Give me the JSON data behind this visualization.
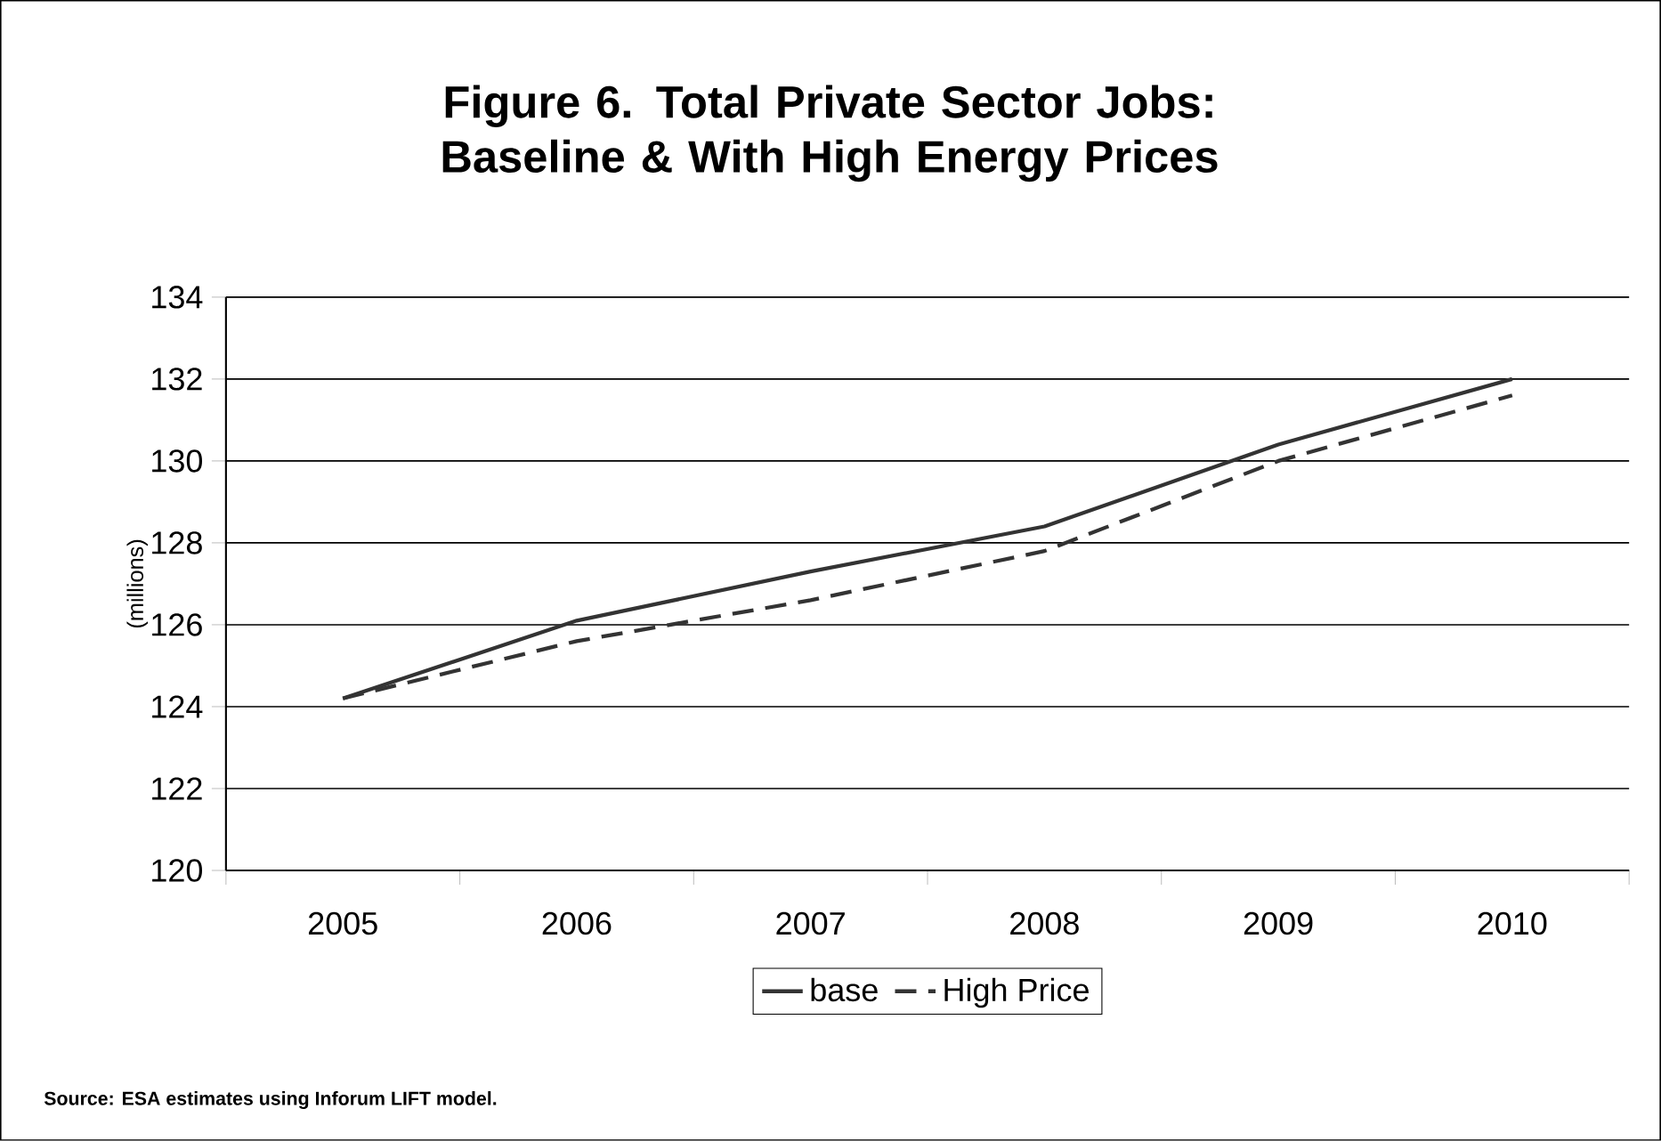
{
  "chart_data": {
    "type": "line",
    "title": "Figure 6. Total Private Sector Jobs: Baseline & With High Energy Prices",
    "ylabel": "(millions)",
    "categories": [
      "2005",
      "2006",
      "2007",
      "2008",
      "2009",
      "2010"
    ],
    "series": [
      {
        "name": "base",
        "color": "#333333",
        "line_style": "solid",
        "values": [
          124.2,
          126.1,
          127.3,
          128.4,
          130.4,
          132.0
        ]
      },
      {
        "name": "High Price",
        "color": "#333333",
        "line_style": "dashed",
        "values": [
          124.2,
          125.6,
          126.6,
          127.8,
          130.0,
          131.6
        ]
      }
    ],
    "ylim": [
      120,
      134
    ],
    "yticks": [
      120,
      122,
      124,
      126,
      128,
      130,
      132,
      134
    ],
    "grid": "y",
    "legend": "bottom",
    "marker": "none",
    "annotations": [
      "Source: ESA estimates using Inforum LIFT model."
    ]
  }
}
